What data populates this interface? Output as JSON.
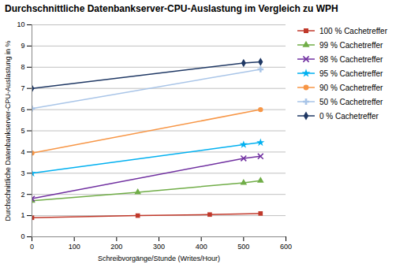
{
  "chart_data": {
    "type": "line",
    "title": "Durchschnittliche Datenbankserver-CPU-Auslastung im Vergleich zu WPH",
    "xlabel": "Schreibvorgänge/Stunde (Writes/Hour)",
    "ylabel": "Durchschnittliche Datenbankserver-CPU-Auslastung in %",
    "xlim": [
      0,
      600
    ],
    "ylim": [
      0,
      10
    ],
    "xticks": [
      0,
      100,
      200,
      300,
      400,
      500,
      600
    ],
    "yticks": [
      0,
      1,
      2,
      3,
      4,
      5,
      6,
      7,
      8,
      9,
      10
    ],
    "grid": "y",
    "legend": "right",
    "series": [
      {
        "name": "100 % Cachetreffer",
        "color": "#c0392b",
        "marker": "square",
        "x": [
          0,
          250,
          420,
          540
        ],
        "values": [
          0.9,
          1.0,
          1.05,
          1.1
        ]
      },
      {
        "name": "99 % Cachetreffer",
        "color": "#70ad47",
        "marker": "triangle",
        "x": [
          0,
          250,
          500,
          540
        ],
        "values": [
          1.7,
          2.1,
          2.55,
          2.65
        ]
      },
      {
        "name": "98 % Cachetreffer",
        "color": "#7030a0",
        "marker": "x",
        "x": [
          0,
          500,
          540
        ],
        "values": [
          1.8,
          3.7,
          3.8
        ]
      },
      {
        "name": "95 % Cachetreffer",
        "color": "#00b0f0",
        "marker": "star",
        "x": [
          0,
          500,
          540
        ],
        "values": [
          3.0,
          4.35,
          4.45
        ]
      },
      {
        "name": "90 % Cachetreffer",
        "color": "#f79646",
        "marker": "circle",
        "x": [
          0,
          540
        ],
        "values": [
          3.95,
          6.0
        ]
      },
      {
        "name": "50 % Cachetreffer",
        "color": "#a9c5e8",
        "marker": "plus",
        "x": [
          0,
          540
        ],
        "values": [
          6.05,
          7.9
        ]
      },
      {
        "name": "0 % Cachetreffer",
        "color": "#1f3864",
        "marker": "diamond",
        "x": [
          0,
          500,
          540
        ],
        "values": [
          7.0,
          8.2,
          8.25
        ]
      }
    ]
  }
}
